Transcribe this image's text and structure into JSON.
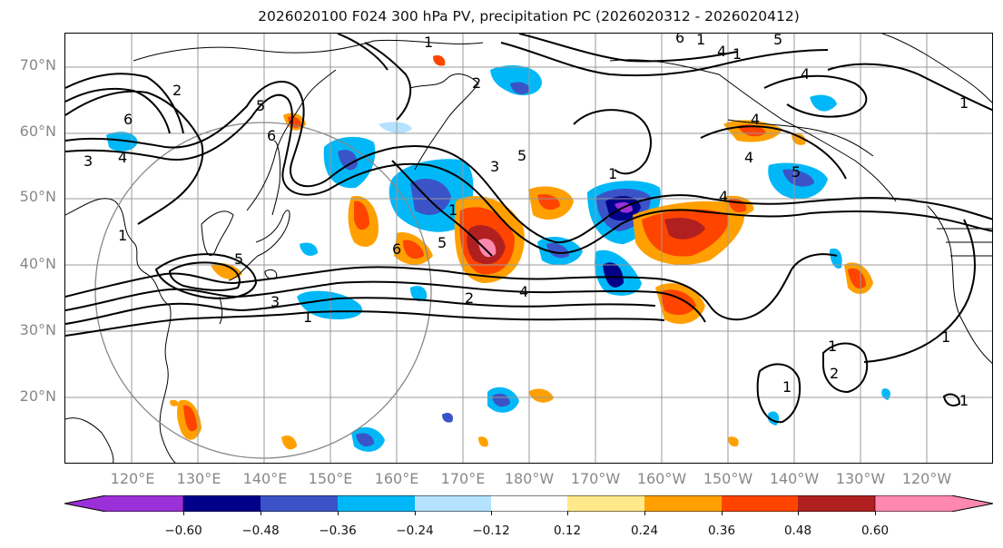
{
  "title": "2026020100 F024 300 hPa PV, precipitation PC (2026020312 - 2026020412)",
  "lat_labels": [
    "70°N",
    "60°N",
    "50°N",
    "40°N",
    "30°N",
    "20°N"
  ],
  "lon_labels": [
    "120°E",
    "130°E",
    "140°E",
    "150°E",
    "160°E",
    "170°E",
    "180°W",
    "170°W",
    "160°W",
    "150°W",
    "140°W",
    "130°W",
    "120°W"
  ],
  "colorbar": {
    "ticks": [
      "−0.60",
      "−0.48",
      "−0.36",
      "−0.24",
      "−0.12",
      "0.12",
      "0.24",
      "0.36",
      "0.48",
      "0.60"
    ],
    "colors": [
      "#9b30d8",
      "#000089",
      "#3a54c8",
      "#00b8f8",
      "#b4e2ff",
      "#ffffff",
      "#ffe98a",
      "#ffa000",
      "#ff4400",
      "#b02020",
      "#ff88b0"
    ]
  },
  "contour_labels": [
    "1",
    "2",
    "3",
    "4",
    "5",
    "6"
  ],
  "colors": {
    "contour": "#000000",
    "grid": "#999999",
    "coast": "#000000",
    "circle": "#888888"
  }
}
